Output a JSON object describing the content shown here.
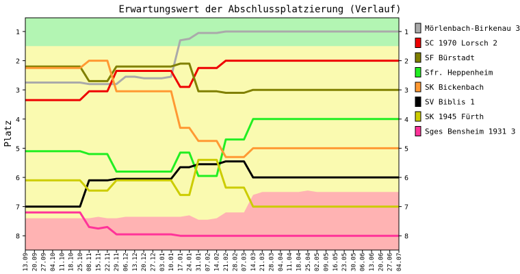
{
  "chart_data": {
    "type": "line",
    "title": "Erwartungswert der Abschlussplatzierung (Verlauf)",
    "ylabel": "Platz",
    "xlabel": "",
    "ylim": [
      8,
      1
    ],
    "yticks": [
      1,
      2,
      3,
      4,
      5,
      6,
      7,
      8
    ],
    "legend_position": "right",
    "grid": false,
    "x": [
      "13.09",
      "20.09",
      "27.09",
      "04.10",
      "11.10",
      "18.10",
      "25.10",
      "08.11",
      "15.11",
      "22.11",
      "29.11",
      "06.12",
      "13.12",
      "20.12",
      "27.12",
      "03.01",
      "10.01",
      "17.01",
      "24.01",
      "31.01",
      "07.02",
      "14.02",
      "21.02",
      "28.02",
      "07.03",
      "14.03",
      "21.03",
      "28.03",
      "04.04",
      "11.04",
      "18.04",
      "25.04",
      "02.05",
      "09.05",
      "16.05",
      "23.05",
      "30.05",
      "06.06",
      "13.06",
      "20.06",
      "27.06",
      "04.07"
    ],
    "bands": {
      "colors": {
        "green": "#b3f5b3",
        "yellow": "#fafab0",
        "red": "#ffb3b3"
      },
      "green_bottom": 1.5,
      "red_top": [
        7.4,
        7.4,
        7.4,
        7.4,
        7.4,
        7.4,
        7.4,
        7.4,
        7.35,
        7.4,
        7.4,
        7.35,
        7.35,
        7.35,
        7.35,
        7.35,
        7.35,
        7.35,
        7.3,
        7.45,
        7.45,
        7.4,
        7.2,
        7.2,
        7.2,
        6.6,
        6.5,
        6.5,
        6.5,
        6.5,
        6.5,
        6.45,
        6.5,
        6.5,
        6.5,
        6.5,
        6.5,
        6.5,
        6.5,
        6.5,
        6.5,
        6.5
      ]
    },
    "series": [
      {
        "name": "Mörlenbach-Birkenau 3",
        "color": "#aaaaaa",
        "values": [
          2.75,
          2.75,
          2.75,
          2.75,
          2.75,
          2.75,
          2.75,
          2.8,
          2.8,
          2.8,
          2.8,
          2.55,
          2.55,
          2.6,
          2.6,
          2.6,
          2.55,
          1.3,
          1.25,
          1.05,
          1.05,
          1.05,
          1.0,
          1.0,
          1.0,
          1.0,
          1.0,
          1.0,
          1.0,
          1.0,
          1.0,
          1.0,
          1.0,
          1.0,
          1.0,
          1.0,
          1.0,
          1.0,
          1.0,
          1.0,
          1.0,
          1.0
        ]
      },
      {
        "name": "SC 1970 Lorsch 2",
        "color": "#ee0000",
        "values": [
          3.35,
          3.35,
          3.35,
          3.35,
          3.35,
          3.35,
          3.35,
          3.05,
          3.05,
          3.05,
          2.35,
          2.35,
          2.35,
          2.35,
          2.35,
          2.35,
          2.35,
          2.9,
          2.9,
          2.25,
          2.25,
          2.25,
          2.0,
          2.0,
          2.0,
          2.0,
          2.0,
          2.0,
          2.0,
          2.0,
          2.0,
          2.0,
          2.0,
          2.0,
          2.0,
          2.0,
          2.0,
          2.0,
          2.0,
          2.0,
          2.0,
          2.0
        ]
      },
      {
        "name": "SF Bürstadt",
        "color": "#808000",
        "values": [
          2.2,
          2.2,
          2.2,
          2.2,
          2.2,
          2.2,
          2.2,
          2.7,
          2.7,
          2.7,
          2.2,
          2.2,
          2.2,
          2.2,
          2.2,
          2.2,
          2.2,
          2.1,
          2.1,
          3.05,
          3.05,
          3.05,
          3.1,
          3.1,
          3.1,
          3.0,
          3.0,
          3.0,
          3.0,
          3.0,
          3.0,
          3.0,
          3.0,
          3.0,
          3.0,
          3.0,
          3.0,
          3.0,
          3.0,
          3.0,
          3.0,
          3.0
        ]
      },
      {
        "name": "Sfr. Heppenheim",
        "color": "#22ee22",
        "values": [
          5.1,
          5.1,
          5.1,
          5.1,
          5.1,
          5.1,
          5.1,
          5.2,
          5.2,
          5.2,
          5.8,
          5.8,
          5.8,
          5.8,
          5.8,
          5.8,
          5.8,
          5.15,
          5.15,
          5.95,
          5.95,
          5.95,
          4.7,
          4.7,
          4.7,
          4.0,
          4.0,
          4.0,
          4.0,
          4.0,
          4.0,
          4.0,
          4.0,
          4.0,
          4.0,
          4.0,
          4.0,
          4.0,
          4.0,
          4.0,
          4.0,
          4.0
        ]
      },
      {
        "name": "SK Bickenbach",
        "color": "#ff9933",
        "values": [
          2.25,
          2.25,
          2.25,
          2.25,
          2.25,
          2.25,
          2.25,
          2.0,
          2.0,
          2.0,
          3.05,
          3.05,
          3.05,
          3.05,
          3.05,
          3.05,
          3.05,
          4.3,
          4.3,
          4.75,
          4.75,
          4.75,
          5.3,
          5.3,
          5.3,
          5.0,
          5.0,
          5.0,
          5.0,
          5.0,
          5.0,
          5.0,
          5.0,
          5.0,
          5.0,
          5.0,
          5.0,
          5.0,
          5.0,
          5.0,
          5.0,
          5.0
        ]
      },
      {
        "name": "SV Biblis 1",
        "color": "#000000",
        "values": [
          7.0,
          7.0,
          7.0,
          7.0,
          7.0,
          7.0,
          7.0,
          6.1,
          6.1,
          6.1,
          6.05,
          6.05,
          6.05,
          6.05,
          6.05,
          6.05,
          6.05,
          5.65,
          5.65,
          5.55,
          5.55,
          5.55,
          5.45,
          5.45,
          5.45,
          6.0,
          6.0,
          6.0,
          6.0,
          6.0,
          6.0,
          6.0,
          6.0,
          6.0,
          6.0,
          6.0,
          6.0,
          6.0,
          6.0,
          6.0,
          6.0,
          6.0
        ]
      },
      {
        "name": "SK 1945 Fürth",
        "color": "#cccc00",
        "values": [
          6.1,
          6.1,
          6.1,
          6.1,
          6.1,
          6.1,
          6.1,
          6.45,
          6.45,
          6.45,
          6.1,
          6.1,
          6.1,
          6.1,
          6.1,
          6.1,
          6.1,
          6.6,
          6.6,
          5.4,
          5.4,
          5.4,
          6.35,
          6.35,
          6.35,
          7.0,
          7.0,
          7.0,
          7.0,
          7.0,
          7.0,
          7.0,
          7.0,
          7.0,
          7.0,
          7.0,
          7.0,
          7.0,
          7.0,
          7.0,
          7.0,
          7.0
        ]
      },
      {
        "name": "Sges Bensheim 1931 3",
        "color": "#ff3399",
        "values": [
          7.2,
          7.2,
          7.2,
          7.2,
          7.2,
          7.2,
          7.2,
          7.7,
          7.75,
          7.7,
          7.95,
          7.95,
          7.95,
          7.95,
          7.95,
          7.95,
          7.95,
          8.0,
          8.0,
          8.0,
          8.0,
          8.0,
          8.0,
          8.0,
          8.0,
          8.0,
          8.0,
          8.0,
          8.0,
          8.0,
          8.0,
          8.0,
          8.0,
          8.0,
          8.0,
          8.0,
          8.0,
          8.0,
          8.0,
          8.0,
          8.0,
          8.0
        ]
      }
    ]
  }
}
